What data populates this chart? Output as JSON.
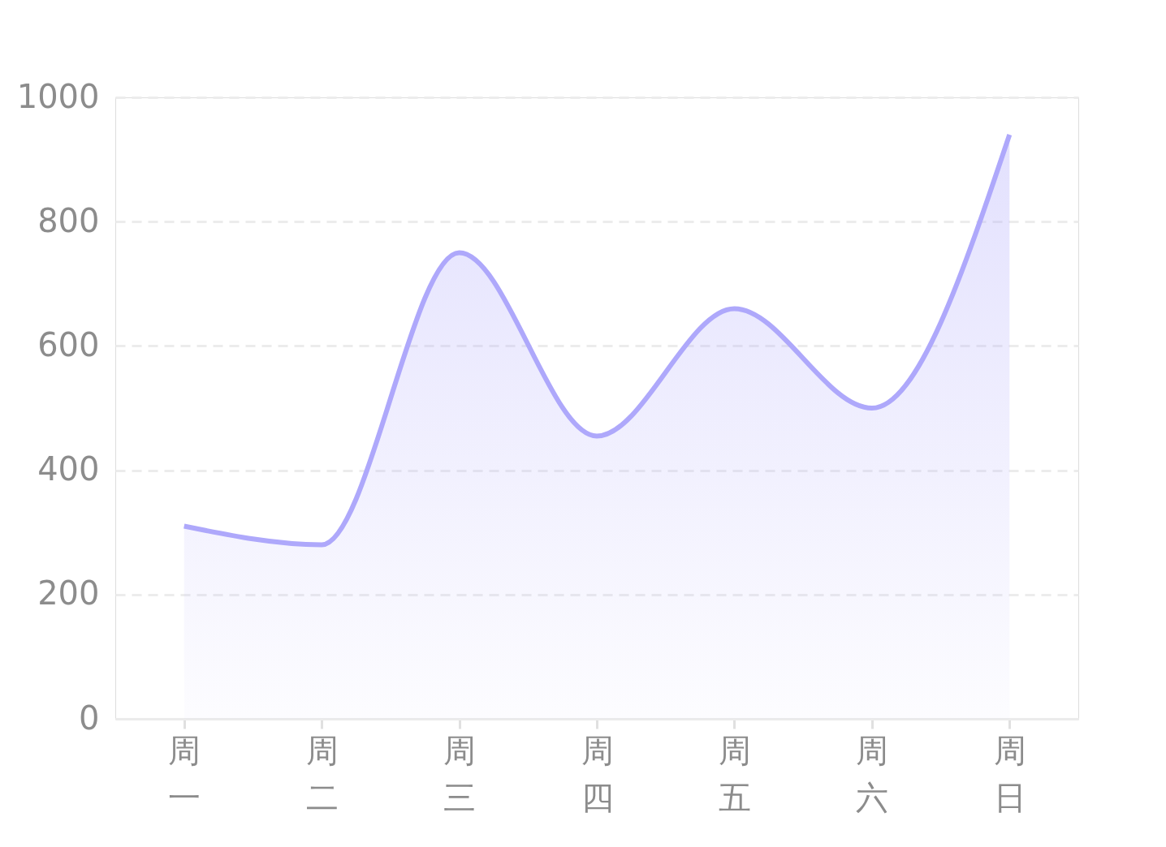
{
  "chart_data": {
    "type": "area",
    "categories": [
      "周一",
      "周二",
      "周三",
      "周四",
      "周五",
      "周六",
      "周日"
    ],
    "series": [
      {
        "color": "#aea8fb",
        "values": [
          310,
          280,
          750,
          455,
          660,
          500,
          940
        ]
      }
    ],
    "ylim": [
      0,
      1000
    ],
    "yticks": [
      0,
      200,
      400,
      600,
      800,
      1000
    ],
    "grid": "y",
    "marker": "none",
    "line_style": "solid"
  }
}
